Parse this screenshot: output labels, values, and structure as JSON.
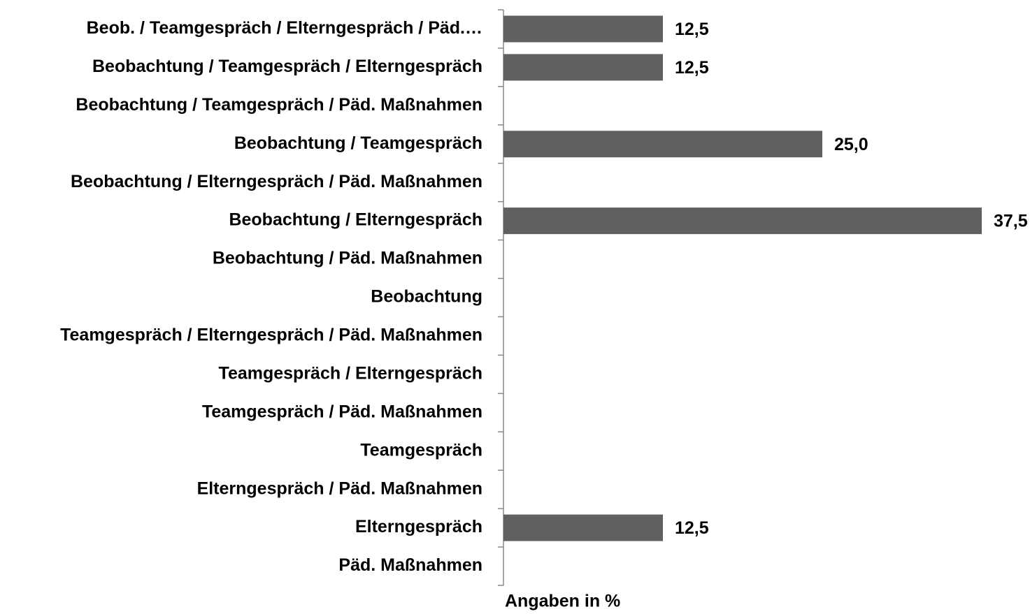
{
  "chart_data": {
    "type": "bar",
    "orientation": "horizontal",
    "categories": [
      "Beob. /  Teamgespräch /  Elterngespräch /   Päd.…",
      "Beobachtung  /  Teamgespräch /  Elterngespräch",
      "Beobachtung  /  Teamgespräch /  Päd. Maßnahmen",
      "Beobachtung  /  Teamgespräch",
      "Beobachtung  /  Elterngespräch /  Päd. Maßnahmen",
      "Beobachtung  /  Elterngespräch",
      "Beobachtung  /  Päd. Maßnahmen",
      "Beobachtung",
      "Teamgespräch /  Elterngespräch / Päd. Maßnahmen",
      "Teamgespräch /  Elterngespräch",
      "Teamgespräch /  Päd. Maßnahmen",
      "Teamgespräch",
      "Elterngespräch / Päd. Maßnahmen",
      "Elterngespräch",
      "Päd. Maßnahmen"
    ],
    "values": [
      12.5,
      12.5,
      0,
      25.0,
      0,
      37.5,
      0,
      0,
      0,
      0,
      0,
      0,
      0,
      12.5,
      0
    ],
    "value_labels": [
      "12,5",
      "12,5",
      null,
      "25,0",
      null,
      "37,5",
      null,
      null,
      null,
      null,
      null,
      null,
      null,
      "12,5",
      null
    ],
    "color": "#606060",
    "xlim": [
      0,
      37.5
    ],
    "xlabel": "Angaben in %"
  }
}
